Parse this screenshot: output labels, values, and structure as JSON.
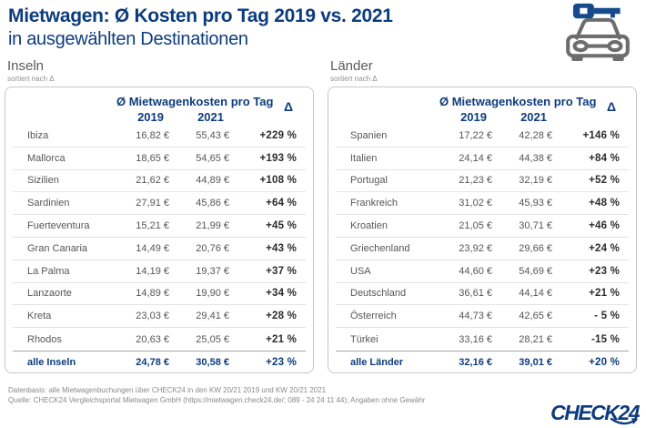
{
  "header": {
    "title_line1": "Mietwagen: Ø Kosten pro Tag 2019 vs. 2021",
    "title_line2": "in ausgewählten Destinationen"
  },
  "colors": {
    "brand_blue": "#0d3c7d",
    "text_gray": "#565656",
    "car_icon_gray": "#6d6d6d"
  },
  "tables": [
    {
      "section_title": "Inseln",
      "sort_note": "sortiert nach Δ",
      "columns": {
        "group": "Ø Mietwagenkosten pro Tag",
        "year1": "2019",
        "year2": "2021",
        "delta": "Δ"
      },
      "rows": [
        {
          "name": "Ibiza",
          "y2019": "16,82 €",
          "y2021": "55,43 €",
          "delta": "+229 %"
        },
        {
          "name": "Mallorca",
          "y2019": "18,65 €",
          "y2021": "54,65 €",
          "delta": "+193 %"
        },
        {
          "name": "Sizilien",
          "y2019": "21,62 €",
          "y2021": "44,89 €",
          "delta": "+108 %"
        },
        {
          "name": "Sardinien",
          "y2019": "27,91 €",
          "y2021": "45,86 €",
          "delta": "+64 %"
        },
        {
          "name": "Fuerteventura",
          "y2019": "15,21 €",
          "y2021": "21,99 €",
          "delta": "+45 %"
        },
        {
          "name": "Gran Canaria",
          "y2019": "14,49 €",
          "y2021": "20,76 €",
          "delta": "+43 %"
        },
        {
          "name": "La Palma",
          "y2019": "14,19 €",
          "y2021": "19,37 €",
          "delta": "+37 %"
        },
        {
          "name": "Lanzaorte",
          "y2019": "14,89 €",
          "y2021": "19,90 €",
          "delta": "+34 %"
        },
        {
          "name": "Kreta",
          "y2019": "23,03 €",
          "y2021": "29,41 €",
          "delta": "+28 %"
        },
        {
          "name": "Rhodos",
          "y2019": "20,63 €",
          "y2021": "25,05 €",
          "delta": "+21 %"
        }
      ],
      "total": {
        "name": "alle Inseln",
        "y2019": "24,78 €",
        "y2021": "30,58 €",
        "delta": "+23 %"
      }
    },
    {
      "section_title": "Länder",
      "sort_note": "sortiert nach Δ",
      "columns": {
        "group": "Ø Mietwagenkosten pro Tag",
        "year1": "2019",
        "year2": "2021",
        "delta": "Δ"
      },
      "rows": [
        {
          "name": "Spanien",
          "y2019": "17,22 €",
          "y2021": "42,28 €",
          "delta": "+146 %"
        },
        {
          "name": "Italien",
          "y2019": "24,14 €",
          "y2021": "44,38 €",
          "delta": "+84 %"
        },
        {
          "name": "Portugal",
          "y2019": "21,23 €",
          "y2021": "32,19 €",
          "delta": "+52 %"
        },
        {
          "name": "Frankreich",
          "y2019": "31,02 €",
          "y2021": "45,93 €",
          "delta": "+48 %"
        },
        {
          "name": "Kroatien",
          "y2019": "21,05 €",
          "y2021": "30,71 €",
          "delta": "+46 %"
        },
        {
          "name": "Griechenland",
          "y2019": "23,92 €",
          "y2021": "29,66 €",
          "delta": "+24 %"
        },
        {
          "name": "USA",
          "y2019": "44,60 €",
          "y2021": "54,69 €",
          "delta": "+23 %"
        },
        {
          "name": "Deutschland",
          "y2019": "36,61 €",
          "y2021": "44,14 €",
          "delta": "+21 %"
        },
        {
          "name": "Österreich",
          "y2019": "44,73 €",
          "y2021": "42,65 €",
          "delta": "- 5 %"
        },
        {
          "name": "Türkei",
          "y2019": "33,16 €",
          "y2021": "28,21 €",
          "delta": "-15 %"
        }
      ],
      "total": {
        "name": "alle Länder",
        "y2019": "32,16 €",
        "y2021": "39,01 €",
        "delta": "+20 %"
      }
    }
  ],
  "chart_data": [
    {
      "type": "table",
      "title": "Inseln",
      "subtitle": "sortiert nach Δ",
      "columns": [
        "Destination",
        "Ø Mietwagenkosten pro Tag 2019 (EUR)",
        "Ø Mietwagenkosten pro Tag 2021 (EUR)",
        "Δ (%)"
      ],
      "rows": [
        [
          "Ibiza",
          16.82,
          55.43,
          229
        ],
        [
          "Mallorca",
          18.65,
          54.65,
          193
        ],
        [
          "Sizilien",
          21.62,
          44.89,
          108
        ],
        [
          "Sardinien",
          27.91,
          45.86,
          64
        ],
        [
          "Fuerteventura",
          15.21,
          21.99,
          45
        ],
        [
          "Gran Canaria",
          14.49,
          20.76,
          43
        ],
        [
          "La Palma",
          14.19,
          19.37,
          37
        ],
        [
          "Lanzaorte",
          14.89,
          19.9,
          34
        ],
        [
          "Kreta",
          23.03,
          29.41,
          28
        ],
        [
          "Rhodos",
          20.63,
          25.05,
          21
        ]
      ],
      "total_row": [
        "alle Inseln",
        24.78,
        30.58,
        23
      ]
    },
    {
      "type": "table",
      "title": "Länder",
      "subtitle": "sortiert nach Δ",
      "columns": [
        "Destination",
        "Ø Mietwagenkosten pro Tag 2019 (EUR)",
        "Ø Mietwagenkosten pro Tag 2021 (EUR)",
        "Δ (%)"
      ],
      "rows": [
        [
          "Spanien",
          17.22,
          42.28,
          146
        ],
        [
          "Italien",
          24.14,
          44.38,
          84
        ],
        [
          "Portugal",
          21.23,
          32.19,
          52
        ],
        [
          "Frankreich",
          31.02,
          45.93,
          48
        ],
        [
          "Kroatien",
          21.05,
          30.71,
          46
        ],
        [
          "Griechenland",
          23.92,
          29.66,
          24
        ],
        [
          "USA",
          44.6,
          54.69,
          23
        ],
        [
          "Deutschland",
          36.61,
          44.14,
          21
        ],
        [
          "Österreich",
          44.73,
          42.65,
          -5
        ],
        [
          "Türkei",
          33.16,
          28.21,
          -15
        ]
      ],
      "total_row": [
        "alle Länder",
        32.16,
        39.01,
        20
      ]
    }
  ],
  "footer": {
    "line1": "Datenbasis: alle Mietwagenbuchungen über CHECK24 in den KW 20/21 2019 und KW 20/21 2021",
    "line2": "Quelle: CHECK24 Vergleichsportal Mietwagen GmbH (https://mietwagen.check24.de/; 089 - 24 24 11 44); Angaben ohne Gewähr",
    "logo": "CHECK24"
  }
}
